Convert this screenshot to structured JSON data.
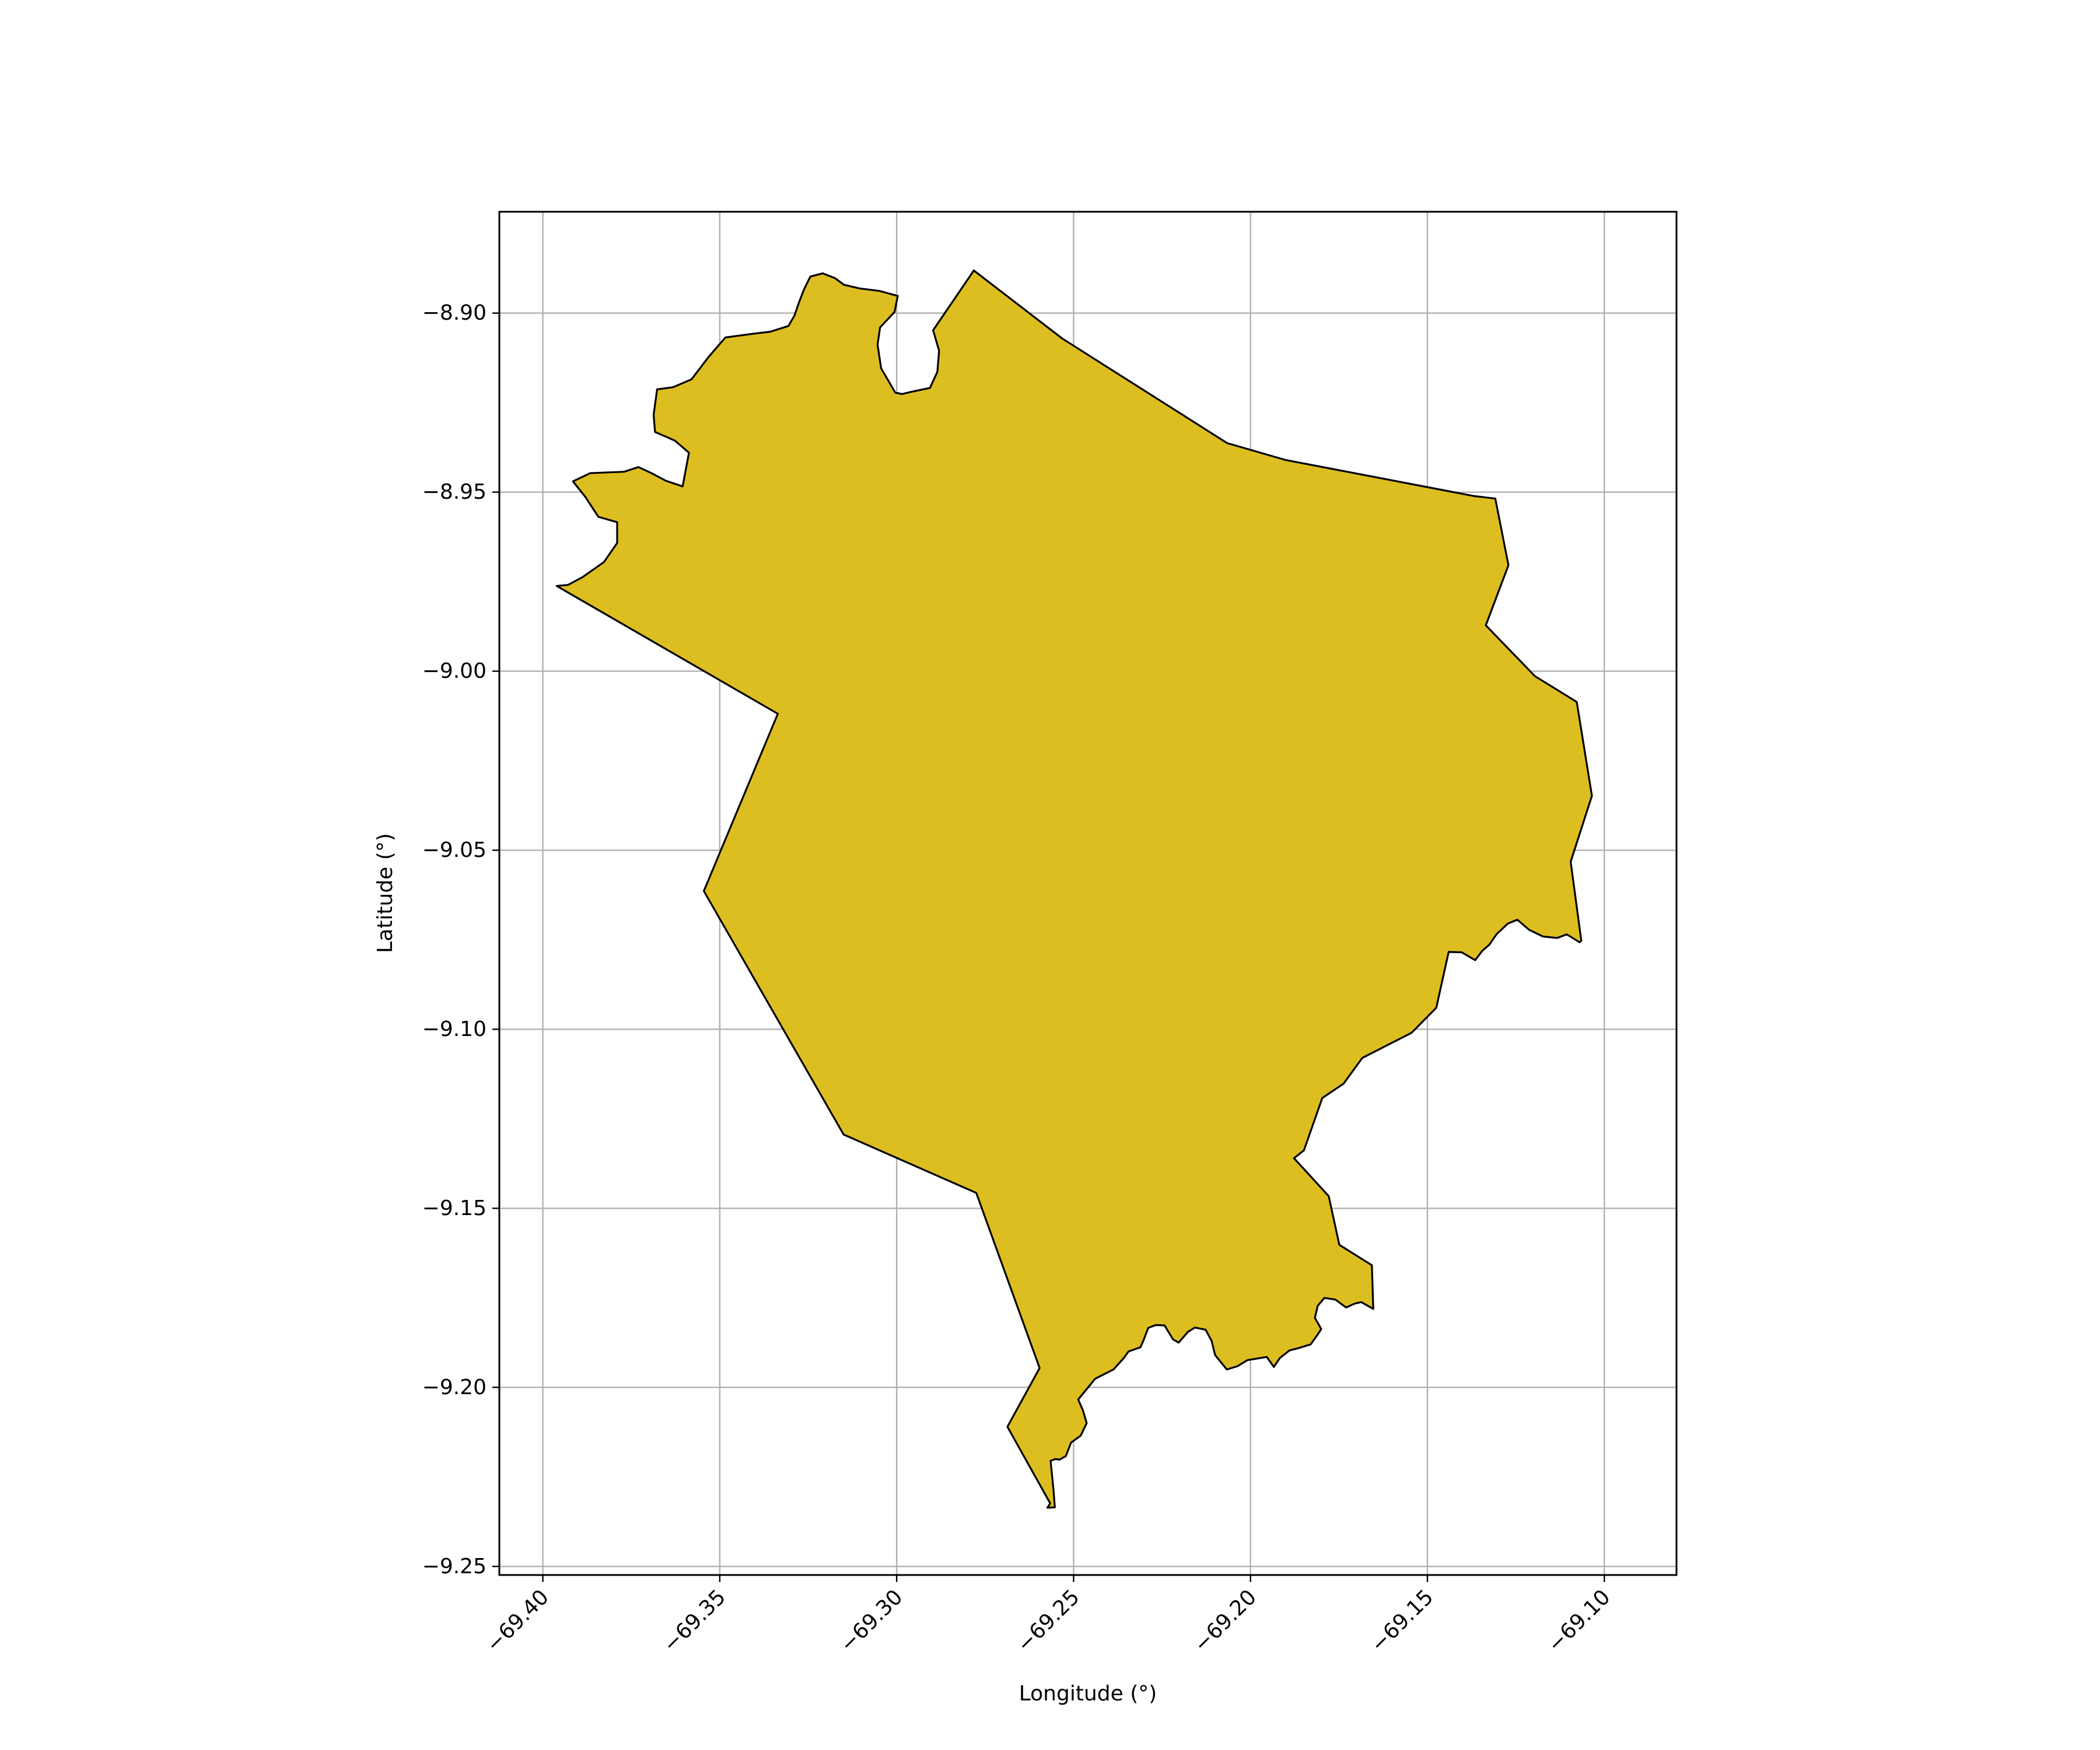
{
  "chart_data": {
    "type": "map",
    "xlabel": "Longitude (°)",
    "ylabel": "Latitude (°)",
    "xlim": [
      -69.4123,
      -69.0796
    ],
    "ylim": [
      -9.2524,
      -8.8717
    ],
    "xticks": [
      {
        "value": -69.4,
        "label": "−69.40"
      },
      {
        "value": -69.35,
        "label": "−69.35"
      },
      {
        "value": -69.3,
        "label": "−69.30"
      },
      {
        "value": -69.25,
        "label": "−69.25"
      },
      {
        "value": -69.2,
        "label": "−69.20"
      },
      {
        "value": -69.15,
        "label": "−69.15"
      },
      {
        "value": -69.1,
        "label": "−69.10"
      }
    ],
    "yticks": [
      {
        "value": -8.9,
        "label": "−8.90"
      },
      {
        "value": -8.95,
        "label": "−8.95"
      },
      {
        "value": -9.0,
        "label": "−9.00"
      },
      {
        "value": -9.05,
        "label": "−9.05"
      },
      {
        "value": -9.1,
        "label": "−9.10"
      },
      {
        "value": -9.15,
        "label": "−9.15"
      },
      {
        "value": -9.2,
        "label": "−9.20"
      },
      {
        "value": -9.25,
        "label": "−9.25"
      }
    ],
    "grid": true,
    "fill_color": "#DDBE20",
    "edge_color": "#000000",
    "polygon": [
      [
        -69.3961,
        -8.9762
      ],
      [
        -69.3336,
        -9.0119
      ],
      [
        -69.3545,
        -9.0614
      ],
      [
        -69.315,
        -9.1294
      ],
      [
        -69.2775,
        -9.1457
      ],
      [
        -69.2596,
        -9.1946
      ],
      [
        -69.2687,
        -9.211
      ],
      [
        -69.2566,
        -9.2324
      ],
      [
        -69.2574,
        -9.2336
      ],
      [
        -69.2553,
        -9.2335
      ],
      [
        -69.2557,
        -9.2285
      ],
      [
        -69.2565,
        -9.2205
      ],
      [
        -69.2551,
        -9.22
      ],
      [
        -69.254,
        -9.2202
      ],
      [
        -69.2522,
        -9.2192
      ],
      [
        -69.2507,
        -9.2154
      ],
      [
        -69.248,
        -9.2135
      ],
      [
        -69.2463,
        -9.21
      ],
      [
        -69.2474,
        -9.2063
      ],
      [
        -69.2487,
        -9.2034
      ],
      [
        -69.2439,
        -9.1976
      ],
      [
        -69.2415,
        -9.1964
      ],
      [
        -69.2387,
        -9.195
      ],
      [
        -69.2358,
        -9.1918
      ],
      [
        -69.2345,
        -9.19
      ],
      [
        -69.2311,
        -9.1888
      ],
      [
        -69.2302,
        -9.1868
      ],
      [
        -69.2289,
        -9.1834
      ],
      [
        -69.2268,
        -9.1826
      ],
      [
        -69.2243,
        -9.1827
      ],
      [
        -69.2219,
        -9.1866
      ],
      [
        -69.2203,
        -9.1875
      ],
      [
        -69.2177,
        -9.1845
      ],
      [
        -69.2157,
        -9.1833
      ],
      [
        -69.2127,
        -9.1839
      ],
      [
        -69.211,
        -9.187
      ],
      [
        -69.21,
        -9.191
      ],
      [
        -69.2067,
        -9.195
      ],
      [
        -69.2037,
        -9.1941
      ],
      [
        -69.2009,
        -9.1924
      ],
      [
        -69.1954,
        -9.1915
      ],
      [
        -69.1934,
        -9.1943
      ],
      [
        -69.1917,
        -9.1918
      ],
      [
        -69.189,
        -9.1897
      ],
      [
        -69.1863,
        -9.189
      ],
      [
        -69.183,
        -9.188
      ],
      [
        -69.1811,
        -9.1854
      ],
      [
        -69.18,
        -9.1837
      ],
      [
        -69.1818,
        -9.1806
      ],
      [
        -69.181,
        -9.1772
      ],
      [
        -69.1791,
        -9.175
      ],
      [
        -69.176,
        -9.1755
      ],
      [
        -69.173,
        -9.1777
      ],
      [
        -69.1705,
        -9.1766
      ],
      [
        -69.1687,
        -9.1762
      ],
      [
        -69.1653,
        -9.1781
      ],
      [
        -69.1657,
        -9.1659
      ],
      [
        -69.1749,
        -9.1602
      ],
      [
        -69.1779,
        -9.1466
      ],
      [
        -69.1877,
        -9.136
      ],
      [
        -69.1849,
        -9.1338
      ],
      [
        -69.1797,
        -9.1192
      ],
      [
        -69.1737,
        -9.1152
      ],
      [
        -69.1684,
        -9.108
      ],
      [
        -69.1545,
        -9.101
      ],
      [
        -69.1475,
        -9.094
      ],
      [
        -69.144,
        -9.0784
      ],
      [
        -69.1403,
        -9.0785
      ],
      [
        -69.1365,
        -9.0807
      ],
      [
        -69.1345,
        -9.0781
      ],
      [
        -69.1325,
        -9.0764
      ],
      [
        -69.1305,
        -9.0735
      ],
      [
        -69.1273,
        -9.0705
      ],
      [
        -69.1246,
        -9.0694
      ],
      [
        -69.1213,
        -9.0722
      ],
      [
        -69.1173,
        -9.0741
      ],
      [
        -69.1133,
        -9.0745
      ],
      [
        -69.1106,
        -9.0735
      ],
      [
        -69.107,
        -9.0757
      ],
      [
        -69.1065,
        -9.0753
      ],
      [
        -69.1095,
        -9.0532
      ],
      [
        -69.1035,
        -9.0348
      ],
      [
        -69.1078,
        -9.0086
      ],
      [
        -69.1196,
        -9.0014
      ],
      [
        -69.1335,
        -8.9872
      ],
      [
        -69.1271,
        -8.9704
      ],
      [
        -69.1308,
        -8.9518
      ],
      [
        -69.1368,
        -8.9511
      ],
      [
        -69.1902,
        -8.941
      ],
      [
        -69.2066,
        -8.9363
      ],
      [
        -69.2532,
        -8.9071
      ],
      [
        -69.2782,
        -8.8881
      ],
      [
        -69.2897,
        -8.9048
      ],
      [
        -69.288,
        -8.9105
      ],
      [
        -69.2885,
        -8.9164
      ],
      [
        -69.2906,
        -8.9209
      ],
      [
        -69.2964,
        -8.9221
      ],
      [
        -69.2985,
        -8.9226
      ],
      [
        -69.3004,
        -8.9222
      ],
      [
        -69.3044,
        -8.9154
      ],
      [
        -69.3054,
        -8.9088
      ],
      [
        -69.3047,
        -8.904
      ],
      [
        -69.3006,
        -8.8997
      ],
      [
        -69.2997,
        -8.8952
      ],
      [
        -69.3049,
        -8.8938
      ],
      [
        -69.3105,
        -8.8931
      ],
      [
        -69.3149,
        -8.8921
      ],
      [
        -69.3175,
        -8.8902
      ],
      [
        -69.3209,
        -8.8889
      ],
      [
        -69.3244,
        -8.8898
      ],
      [
        -69.3261,
        -8.8932
      ],
      [
        -69.3275,
        -8.8967
      ],
      [
        -69.3289,
        -8.9007
      ],
      [
        -69.3306,
        -8.9036
      ],
      [
        -69.3357,
        -8.9052
      ],
      [
        -69.3408,
        -8.9058
      ],
      [
        -69.3484,
        -8.9068
      ],
      [
        -69.3532,
        -8.9123
      ],
      [
        -69.358,
        -8.9185
      ],
      [
        -69.3632,
        -8.9207
      ],
      [
        -69.3677,
        -8.9213
      ],
      [
        -69.3687,
        -8.9284
      ],
      [
        -69.3683,
        -8.9332
      ],
      [
        -69.3627,
        -8.9356
      ],
      [
        -69.3587,
        -8.939
      ],
      [
        -69.3605,
        -8.9484
      ],
      [
        -69.3653,
        -8.9468
      ],
      [
        -69.3693,
        -8.9447
      ],
      [
        -69.373,
        -8.943
      ],
      [
        -69.377,
        -8.9443
      ],
      [
        -69.3866,
        -8.9447
      ],
      [
        -69.3915,
        -8.947
      ],
      [
        -69.3881,
        -8.9512
      ],
      [
        -69.3843,
        -8.9569
      ],
      [
        -69.379,
        -8.9584
      ],
      [
        -69.379,
        -8.9642
      ],
      [
        -69.3827,
        -8.9695
      ],
      [
        -69.3887,
        -8.9737
      ],
      [
        -69.3929,
        -8.9759
      ],
      [
        -69.3961,
        -8.9762
      ]
    ]
  }
}
